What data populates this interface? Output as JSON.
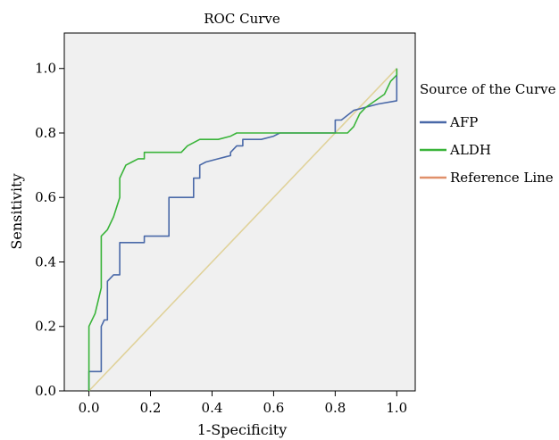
{
  "chart_data": {
    "type": "line",
    "title": "ROC Curve",
    "xlabel": "1-Specificity",
    "ylabel": "Sensitivity",
    "xlim": [
      -0.08,
      1.06
    ],
    "ylim": [
      0.0,
      1.11
    ],
    "x_ticks": [
      "0.0",
      "0.2",
      "0.4",
      "0.6",
      "0.8",
      "1.0"
    ],
    "y_ticks": [
      "0.0",
      "0.2",
      "0.4",
      "0.6",
      "0.8",
      "1.0"
    ],
    "grid": false,
    "plot_background": "#f0f0f0",
    "legend": {
      "title": "Source of the Curve",
      "placement": "right"
    },
    "series": [
      {
        "name": "AFP",
        "color": "#4a69a8",
        "x": [
          0,
          0,
          0.04,
          0.04,
          0.05,
          0.06,
          0.06,
          0.08,
          0.1,
          0.1,
          0.18,
          0.18,
          0.26,
          0.26,
          0.34,
          0.34,
          0.36,
          0.36,
          0.38,
          0.42,
          0.46,
          0.46,
          0.48,
          0.5,
          0.5,
          0.56,
          0.6,
          0.62,
          0.66,
          0.7,
          0.8,
          0.8,
          0.82,
          0.86,
          0.9,
          0.94,
          1.0,
          1.0
        ],
        "y": [
          0,
          0.06,
          0.06,
          0.2,
          0.22,
          0.22,
          0.34,
          0.36,
          0.36,
          0.46,
          0.46,
          0.48,
          0.48,
          0.6,
          0.6,
          0.66,
          0.66,
          0.7,
          0.71,
          0.72,
          0.73,
          0.74,
          0.76,
          0.76,
          0.78,
          0.78,
          0.79,
          0.8,
          0.8,
          0.8,
          0.8,
          0.84,
          0.84,
          0.87,
          0.88,
          0.89,
          0.9,
          1.0
        ]
      },
      {
        "name": "ALDH",
        "color": "#3ab43a",
        "x": [
          0,
          0,
          0.02,
          0.04,
          0.04,
          0.06,
          0.08,
          0.1,
          0.1,
          0.12,
          0.14,
          0.16,
          0.18,
          0.18,
          0.3,
          0.32,
          0.36,
          0.4,
          0.42,
          0.46,
          0.48,
          0.6,
          0.84,
          0.86,
          0.88,
          0.9,
          0.96,
          0.98,
          1.0,
          1.0
        ],
        "y": [
          0,
          0.2,
          0.24,
          0.32,
          0.48,
          0.5,
          0.54,
          0.6,
          0.66,
          0.7,
          0.71,
          0.72,
          0.72,
          0.74,
          0.74,
          0.76,
          0.78,
          0.78,
          0.78,
          0.79,
          0.8,
          0.8,
          0.8,
          0.82,
          0.86,
          0.88,
          0.92,
          0.96,
          0.98,
          1.0
        ]
      },
      {
        "name": "Reference Line",
        "color": "#e0d29a",
        "legend_color": "#e0906a",
        "x": [
          0,
          1
        ],
        "y": [
          0,
          1
        ]
      }
    ]
  }
}
